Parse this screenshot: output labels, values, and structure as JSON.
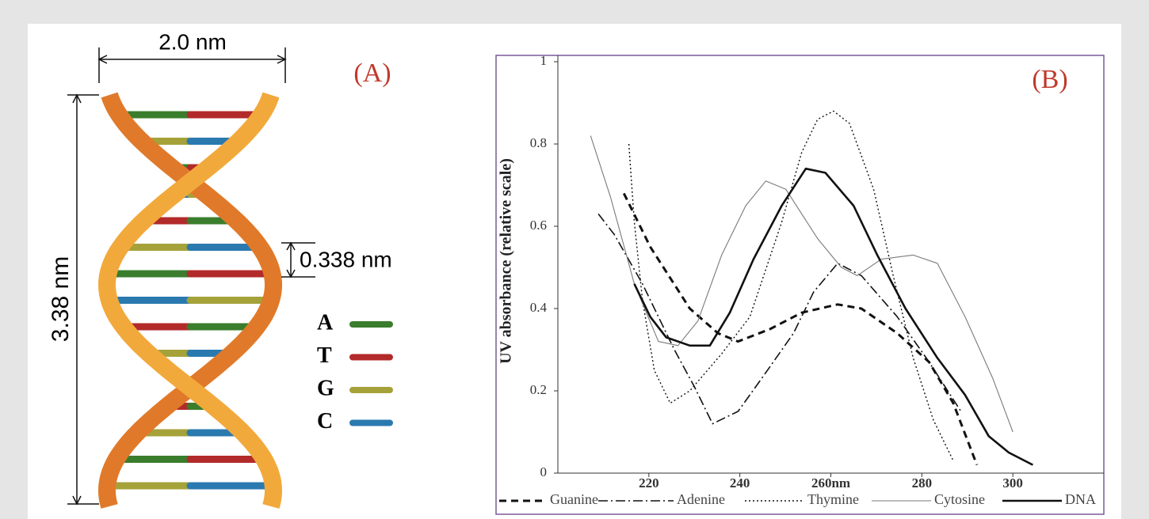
{
  "diagram": {
    "label": "(A)",
    "width_label": "2.0 nm",
    "height_label": "3.38 nm",
    "rise_label": "0.338 nm",
    "bases": [
      {
        "letter": "A",
        "color": "#3a7d2c"
      },
      {
        "letter": "T",
        "color": "#b22a2a"
      },
      {
        "letter": "G",
        "color": "#a5a23a"
      },
      {
        "letter": "C",
        "color": "#2a7ab0"
      }
    ]
  },
  "chart_data": {
    "type": "line",
    "annotation": "(B)",
    "y_label": "UV absorbance (relative scale)",
    "xlim": [
      200,
      320
    ],
    "ylim": [
      0,
      1
    ],
    "xticks": [
      220,
      240,
      {
        "value": 260,
        "label": "260nm"
      },
      280,
      300
    ],
    "yticks": [
      0,
      0.2,
      0.4,
      0.6,
      0.8,
      1
    ],
    "series": [
      {
        "name": "Guanine",
        "color": "#111111",
        "x": [
          214.5,
          220.3,
          229,
          235.2,
          239.6,
          246.6,
          253.6,
          261.5,
          266.7,
          274.6,
          281.6,
          286.9,
          292.1
        ],
        "values": [
          0.68,
          0.55,
          0.4,
          0.34,
          0.32,
          0.35,
          0.39,
          0.41,
          0.4,
          0.34,
          0.27,
          0.17,
          0.02
        ]
      },
      {
        "name": "Adenine",
        "color": "#111111",
        "x": [
          208.9,
          212.4,
          218.6,
          225.6,
          230,
          234,
          239.6,
          244.8,
          251.8,
          256.2,
          261.5,
          266.7,
          274.6,
          281.6,
          288.6
        ],
        "values": [
          0.63,
          0.58,
          0.46,
          0.3,
          0.21,
          0.12,
          0.15,
          0.23,
          0.34,
          0.44,
          0.51,
          0.48,
          0.38,
          0.27,
          0.15
        ]
      },
      {
        "name": "Thymine",
        "color": "#111111",
        "x": [
          215.6,
          216.8,
          218.6,
          221.2,
          224.7,
          229,
          236,
          242.2,
          249.2,
          253.6,
          257.1,
          260.6,
          264.1,
          269.4,
          273.7,
          278.1,
          282.5,
          286.9
        ],
        "values": [
          0.8,
          0.61,
          0.42,
          0.25,
          0.17,
          0.2,
          0.29,
          0.38,
          0.61,
          0.78,
          0.86,
          0.88,
          0.85,
          0.69,
          0.48,
          0.28,
          0.13,
          0.03
        ]
      },
      {
        "name": "Cytosine",
        "color": "#7a7a7a",
        "x": [
          207.2,
          211.6,
          216.8,
          222.1,
          226.4,
          230.8,
          236,
          241.3,
          245.7,
          250.1,
          257.1,
          262.3,
          265.8,
          271.1,
          278.1,
          283.4,
          289.5,
          295.6,
          300
        ],
        "values": [
          0.82,
          0.67,
          0.46,
          0.32,
          0.31,
          0.37,
          0.53,
          0.65,
          0.71,
          0.69,
          0.57,
          0.5,
          0.48,
          0.52,
          0.53,
          0.51,
          0.38,
          0.23,
          0.1
        ]
      },
      {
        "name": "DNA",
        "color": "#111111",
        "x": [
          216.8,
          220.3,
          223.8,
          229,
          233.4,
          237.8,
          243,
          249.2,
          254.5,
          258.8,
          265,
          270.2,
          276.4,
          283.4,
          289.5,
          294.7,
          299.1,
          304.4
        ],
        "values": [
          0.46,
          0.38,
          0.33,
          0.31,
          0.31,
          0.39,
          0.52,
          0.65,
          0.74,
          0.73,
          0.65,
          0.53,
          0.4,
          0.28,
          0.19,
          0.09,
          0.05,
          0.02
        ]
      }
    ]
  }
}
